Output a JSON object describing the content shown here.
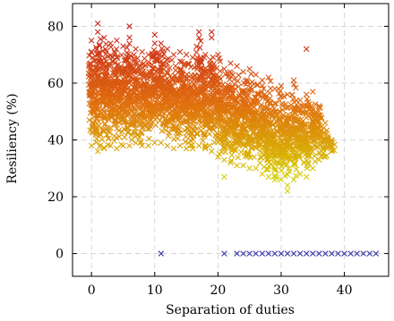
{
  "chart_data": {
    "type": "scatter",
    "title": "",
    "xlabel": "Separation of duties",
    "ylabel": "Resiliency (%)",
    "xlim": [
      -3,
      47
    ],
    "ylim": [
      -8,
      88
    ],
    "x_ticks": [
      0,
      10,
      20,
      30,
      40
    ],
    "y_ticks": [
      0,
      20,
      40,
      60,
      80
    ],
    "grid": true,
    "marker": "x",
    "colors": {
      "low": "#d4d400",
      "mid": "#e0700e",
      "high": "#c81e1e",
      "zero": "#3a3aa8"
    },
    "zero_series": {
      "x": [
        11,
        21,
        23,
        24,
        25,
        26,
        27,
        28,
        29,
        30,
        31,
        32,
        33,
        34,
        35,
        36,
        37,
        38,
        39,
        40,
        41,
        42,
        43,
        44,
        45
      ],
      "y": [
        0,
        0,
        0,
        0,
        0,
        0,
        0,
        0,
        0,
        0,
        0,
        0,
        0,
        0,
        0,
        0,
        0,
        0,
        0,
        0,
        0,
        0,
        0,
        0,
        0
      ]
    },
    "bands": [
      {
        "x": 0,
        "min": 38,
        "max": 75
      },
      {
        "x": 1,
        "min": 36,
        "max": 78
      },
      {
        "x": 2,
        "min": 37,
        "max": 76
      },
      {
        "x": 3,
        "min": 38,
        "max": 74
      },
      {
        "x": 4,
        "min": 37,
        "max": 75
      },
      {
        "x": 5,
        "min": 38,
        "max": 73
      },
      {
        "x": 6,
        "min": 38,
        "max": 76
      },
      {
        "x": 7,
        "min": 39,
        "max": 72
      },
      {
        "x": 8,
        "min": 38,
        "max": 71
      },
      {
        "x": 9,
        "min": 38,
        "max": 70
      },
      {
        "x": 10,
        "min": 39,
        "max": 74
      },
      {
        "x": 11,
        "min": 39,
        "max": 74
      },
      {
        "x": 12,
        "min": 38,
        "max": 72
      },
      {
        "x": 13,
        "min": 37,
        "max": 70
      },
      {
        "x": 14,
        "min": 38,
        "max": 71
      },
      {
        "x": 15,
        "min": 37,
        "max": 70
      },
      {
        "x": 16,
        "min": 37,
        "max": 69
      },
      {
        "x": 17,
        "min": 38,
        "max": 76
      },
      {
        "x": 18,
        "min": 37,
        "max": 70
      },
      {
        "x": 19,
        "min": 36,
        "max": 76
      },
      {
        "x": 20,
        "min": 34,
        "max": 70
      },
      {
        "x": 21,
        "min": 33,
        "max": 65
      },
      {
        "x": 22,
        "min": 32,
        "max": 67
      },
      {
        "x": 23,
        "min": 31,
        "max": 66
      },
      {
        "x": 24,
        "min": 31,
        "max": 64
      },
      {
        "x": 25,
        "min": 30,
        "max": 65
      },
      {
        "x": 26,
        "min": 30,
        "max": 63
      },
      {
        "x": 27,
        "min": 28,
        "max": 61
      },
      {
        "x": 28,
        "min": 27,
        "max": 62
      },
      {
        "x": 29,
        "min": 26,
        "max": 58
      },
      {
        "x": 30,
        "min": 26,
        "max": 59
      },
      {
        "x": 31,
        "min": 24,
        "max": 56
      },
      {
        "x": 32,
        "min": 26,
        "max": 61
      },
      {
        "x": 33,
        "min": 28,
        "max": 54
      },
      {
        "x": 34,
        "min": 27,
        "max": 56
      },
      {
        "x": 35,
        "min": 30,
        "max": 57
      },
      {
        "x": 36,
        "min": 33,
        "max": 52
      },
      {
        "x": 37,
        "min": 34,
        "max": 46
      },
      {
        "x": 38,
        "min": 36,
        "max": 40
      }
    ],
    "outliers": [
      {
        "x": 1,
        "y": 81
      },
      {
        "x": 6,
        "y": 80
      },
      {
        "x": 10,
        "y": 77
      },
      {
        "x": 17,
        "y": 78
      },
      {
        "x": 19,
        "y": 78
      },
      {
        "x": 34,
        "y": 72
      },
      {
        "x": 21,
        "y": 27
      },
      {
        "x": 31,
        "y": 22
      }
    ]
  }
}
